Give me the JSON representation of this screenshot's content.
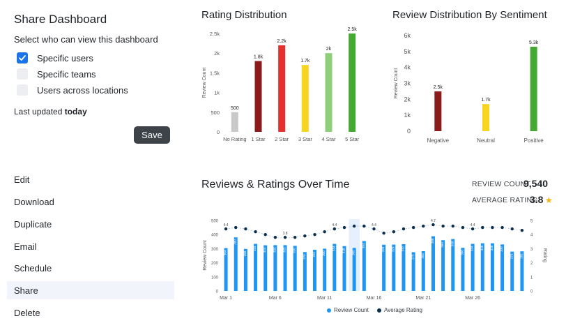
{
  "share": {
    "title": "Share Dashboard",
    "subtitle": "Select who can view this dashboard",
    "options": [
      {
        "label": "Specific users",
        "checked": true
      },
      {
        "label": "Specific teams",
        "checked": false
      },
      {
        "label": "Users across locations",
        "checked": false
      }
    ],
    "last_updated_prefix": "Last updated ",
    "last_updated_value": "today",
    "save_label": "Save"
  },
  "menu": {
    "items": [
      "Edit",
      "Download",
      "Duplicate",
      "Email",
      "Schedule",
      "Share",
      "Delete"
    ],
    "active": "Share"
  },
  "stats": {
    "review_count_label": "REVIEW COUNT",
    "review_count_value": "9,540",
    "average_rating_label": "AVERAGE RATING",
    "average_rating_value": "3.8",
    "star_icon": "star-icon"
  },
  "colors": {
    "gray": "#c9c9c9",
    "darkred": "#8b1a1a",
    "red": "#e5312e",
    "yellow": "#f7d51f",
    "lightgreen": "#8fcf7a",
    "green": "#45a832",
    "blue": "#1f96f3",
    "navy": "#0b2f4f"
  },
  "chart_data": [
    {
      "type": "bar",
      "title": "Rating Distribution",
      "ylabel": "Review Count",
      "categories": [
        "No Rating",
        "1 Star",
        "2 Star",
        "3 Star",
        "4 Star",
        "5 Star"
      ],
      "values": [
        500,
        1800,
        2200,
        1700,
        2000,
        2500
      ],
      "data_labels": [
        "500",
        "1.8k",
        "2.2k",
        "1.7k",
        "2k",
        "2.5k"
      ],
      "bar_colors": [
        "#c9c9c9",
        "#8b1a1a",
        "#e5312e",
        "#f7d51f",
        "#8fcf7a",
        "#45a832"
      ],
      "yticks": [
        0,
        500,
        1000,
        1500,
        2000,
        2500
      ],
      "ytick_labels": [
        "0",
        "500",
        "1k",
        "1.5k",
        "2k",
        "2.5k"
      ],
      "ylim": [
        0,
        2500
      ]
    },
    {
      "type": "bar",
      "title": "Review Distribution By Sentiment",
      "ylabel": "Review Count",
      "categories": [
        "Negative",
        "Neutral",
        "Positive"
      ],
      "values": [
        2500,
        1700,
        5300
      ],
      "data_labels": [
        "2.5k",
        "1.7k",
        "5.3k"
      ],
      "bar_colors": [
        "#8b1a1a",
        "#f7d51f",
        "#45a832"
      ],
      "yticks": [
        0,
        1000,
        2000,
        3000,
        4000,
        5000,
        6000
      ],
      "ytick_labels": [
        "0",
        "1k",
        "2k",
        "3k",
        "4k",
        "5k",
        "6k"
      ],
      "ylim": [
        0,
        6000
      ]
    },
    {
      "type": "bar",
      "title": "Reviews & Ratings Over Time",
      "ylabel": "Review Count",
      "ylabel_right": "Rating",
      "x_tick_labels": [
        "Mar 1",
        "Mar 6",
        "Mar 11",
        "Mar 16",
        "Mar 21",
        "Mar 26"
      ],
      "x_tick_index": [
        0,
        5,
        10,
        15,
        20,
        25
      ],
      "yticks": [
        0,
        100,
        200,
        300,
        400,
        500
      ],
      "ylim": [
        0,
        500
      ],
      "yticks_right": [
        0,
        1,
        2,
        3,
        4,
        5
      ],
      "ylim_right": [
        0,
        5
      ],
      "highlight_index": 13,
      "series": [
        {
          "name": "Review Count",
          "color": "#1f96f3",
          "values": [
            304,
            380,
            298,
            334,
            324,
            325,
            325,
            320,
            276,
            292,
            300,
            334,
            318,
            305,
            354,
            null,
            328,
            329,
            332,
            275,
            282,
            388,
            360,
            368,
            306,
            334,
            338,
            338,
            330,
            279,
            281
          ],
          "value_labels": [
            "304",
            "380",
            "298",
            "334",
            "324",
            "325",
            "325",
            "320",
            "276",
            "292",
            "300",
            "334",
            "318",
            "305",
            "354",
            "",
            "328",
            "329",
            "332",
            "275",
            "282",
            "388",
            "360",
            "368",
            "306",
            "334",
            "338",
            "338",
            "330",
            "279",
            "281"
          ]
        },
        {
          "name": "Average Rating",
          "color": "#0b2f4f",
          "values": [
            4.4,
            4.5,
            4.4,
            4.2,
            4.0,
            3.8,
            3.8,
            3.8,
            3.9,
            4.0,
            4.2,
            4.4,
            4.5,
            4.6,
            4.6,
            4.4,
            4.1,
            4.2,
            4.4,
            4.5,
            4.6,
            4.7,
            4.6,
            4.6,
            4.5,
            4.4,
            4.5,
            4.5,
            4.5,
            4.4,
            4.3
          ],
          "value_labels": {
            "0": "4.4",
            "6": "3.8",
            "11": "4.4",
            "15": "4.4",
            "21": "4.7",
            "25": "4.4"
          }
        }
      ]
    }
  ]
}
